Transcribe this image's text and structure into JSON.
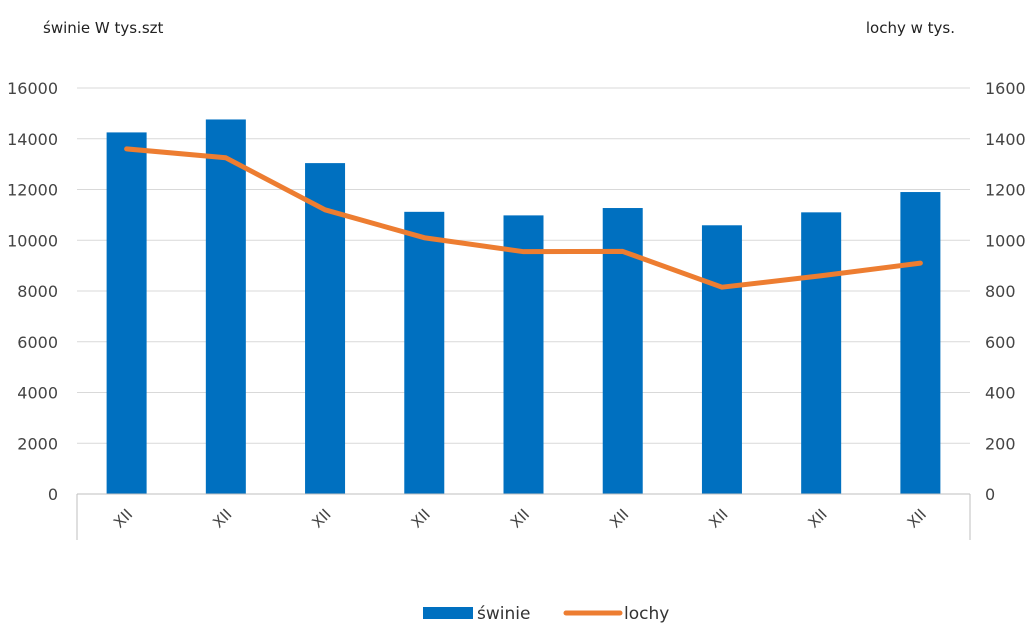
{
  "chart_data": {
    "type": "bar+line",
    "title": "",
    "y_left_label": "świnie  W  tys.szt",
    "y_right_label": "lochy  w  tys.",
    "categories": [
      "XII",
      "XII",
      "XII",
      "XII",
      "XII",
      "XII",
      "XII",
      "XII",
      "XII"
    ],
    "left_axis": {
      "min": 0,
      "max": 16000,
      "ticks": [
        "0",
        "2000",
        "4000",
        "6000",
        "8000",
        "10000",
        "12000",
        "14000",
        "16000"
      ]
    },
    "right_axis": {
      "min": 0,
      "max": 1600,
      "ticks": [
        "0",
        "200",
        "400",
        "600",
        "800",
        "1000",
        "1200",
        "1400",
        "1600"
      ]
    },
    "grid": true,
    "legend_position": "bottom",
    "series": [
      {
        "name": "świnie",
        "type": "bar",
        "axis": "left",
        "color": "#0070C0",
        "values": [
          14250,
          14760,
          13040,
          11120,
          10980,
          11270,
          10590,
          11100,
          11900
        ]
      },
      {
        "name": "lochy",
        "type": "line",
        "axis": "right",
        "color": "#ED7D31",
        "values": [
          1360,
          1325,
          1120,
          1010,
          955,
          956,
          815,
          860,
          910
        ]
      }
    ]
  }
}
